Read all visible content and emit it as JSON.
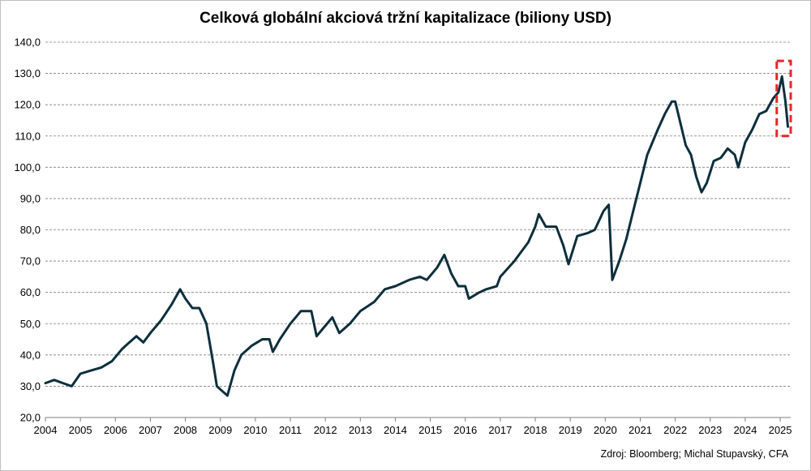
{
  "chart_data": {
    "type": "line",
    "title": "Celková globální akciová tržní kapitalizace (biliony USD)",
    "source": "Zdroj: Bloomberg; Michal Stupavský, CFA",
    "ylim": [
      20,
      140
    ],
    "xlim": [
      2004,
      2025.3
    ],
    "yticks": [
      "20,0",
      "30,0",
      "40,0",
      "50,0",
      "60,0",
      "70,0",
      "80,0",
      "90,0",
      "100,0",
      "110,0",
      "120,0",
      "130,0",
      "140,0"
    ],
    "xticks": [
      "2004",
      "2005",
      "2006",
      "2007",
      "2008",
      "2009",
      "2010",
      "2011",
      "2012",
      "2013",
      "2014",
      "2015",
      "2016",
      "2017",
      "2018",
      "2019",
      "2020",
      "2021",
      "2022",
      "2023",
      "2024",
      "2025"
    ],
    "grid": true,
    "line_color": "#0d2f3c",
    "highlight_color": "#e8262a",
    "highlight_range": {
      "x": [
        2024.9,
        2025.3
      ],
      "y": [
        110,
        134
      ]
    },
    "series": [
      {
        "x": [
          2004.0,
          2004.25,
          2004.5,
          2004.75,
          2005.0,
          2005.3,
          2005.6,
          2005.9,
          2006.2,
          2006.4,
          2006.6,
          2006.8,
          2007.0,
          2007.3,
          2007.6,
          2007.85,
          2008.0,
          2008.2,
          2008.4,
          2008.6,
          2008.8,
          2008.9,
          2009.0,
          2009.2,
          2009.4,
          2009.6,
          2009.9,
          2010.2,
          2010.4,
          2010.5,
          2010.7,
          2011.0,
          2011.3,
          2011.6,
          2011.75,
          2011.9,
          2012.2,
          2012.4,
          2012.7,
          2013.0,
          2013.4,
          2013.7,
          2014.0,
          2014.4,
          2014.7,
          2014.9,
          2015.2,
          2015.4,
          2015.6,
          2015.8,
          2016.0,
          2016.1,
          2016.4,
          2016.6,
          2016.9,
          2017.0,
          2017.4,
          2017.8,
          2018.0,
          2018.1,
          2018.3,
          2018.6,
          2018.8,
          2018.95,
          2019.2,
          2019.5,
          2019.7,
          2019.95,
          2020.1,
          2020.2,
          2020.4,
          2020.6,
          2020.8,
          2021.0,
          2021.2,
          2021.5,
          2021.7,
          2021.9,
          2022.0,
          2022.3,
          2022.45,
          2022.6,
          2022.75,
          2022.9,
          2023.1,
          2023.3,
          2023.5,
          2023.7,
          2023.8,
          2024.0,
          2024.2,
          2024.4,
          2024.6,
          2024.8,
          2024.95,
          2025.05,
          2025.15,
          2025.22
        ],
        "y": [
          31,
          32,
          31,
          30,
          34,
          35,
          36,
          38,
          42,
          44,
          46,
          44,
          47,
          51,
          56,
          61,
          58,
          55,
          55,
          50,
          37,
          30,
          29,
          27,
          35,
          40,
          43,
          45,
          45,
          41,
          45,
          50,
          54,
          54,
          46,
          48,
          52,
          47,
          50,
          54,
          57,
          61,
          62,
          64,
          65,
          64,
          68,
          72,
          66,
          62,
          62,
          58,
          60,
          61,
          62,
          65,
          70,
          76,
          81,
          85,
          81,
          81,
          75,
          69,
          78,
          79,
          80,
          86,
          88,
          64,
          70,
          77,
          86,
          95,
          104,
          112,
          117,
          121,
          121,
          107,
          104,
          97,
          92,
          95,
          102,
          103,
          106,
          104,
          100,
          108,
          112,
          117,
          118,
          122,
          124,
          129,
          121,
          113
        ]
      }
    ]
  }
}
